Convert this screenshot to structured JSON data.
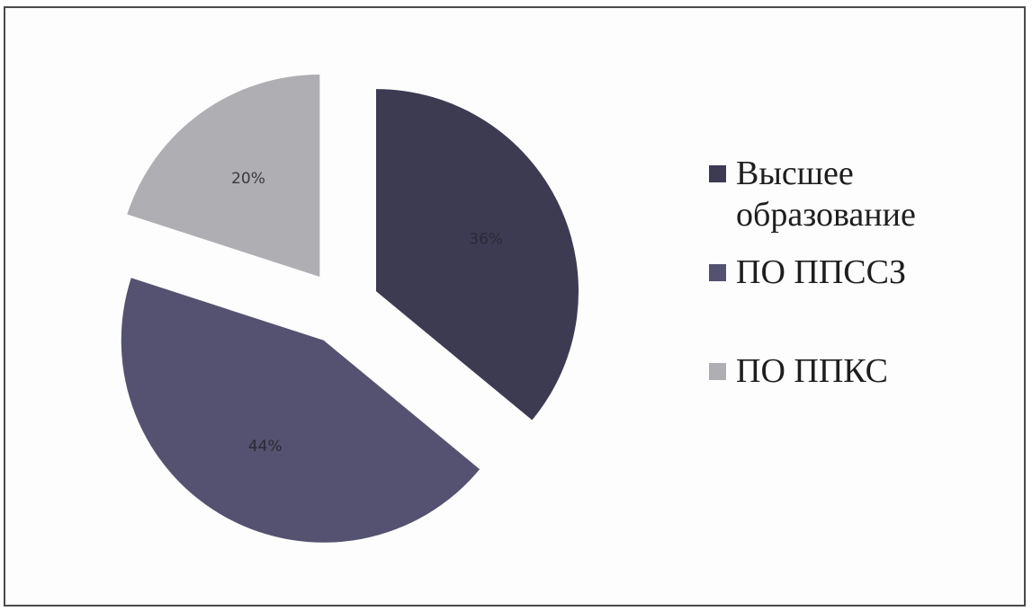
{
  "chart_data": {
    "type": "pie",
    "title": "",
    "slices": [
      {
        "label": "Высшее образование",
        "value": 36,
        "display": "36%",
        "color": "#3d3b52"
      },
      {
        "label": "ПО ППССЗ",
        "value": 44,
        "display": "44%",
        "color": "#545270"
      },
      {
        "label": "ПО ППКС",
        "value": 20,
        "display": "20%",
        "color": "#aeaeb3"
      }
    ],
    "legend_position": "right",
    "exploded": true
  }
}
